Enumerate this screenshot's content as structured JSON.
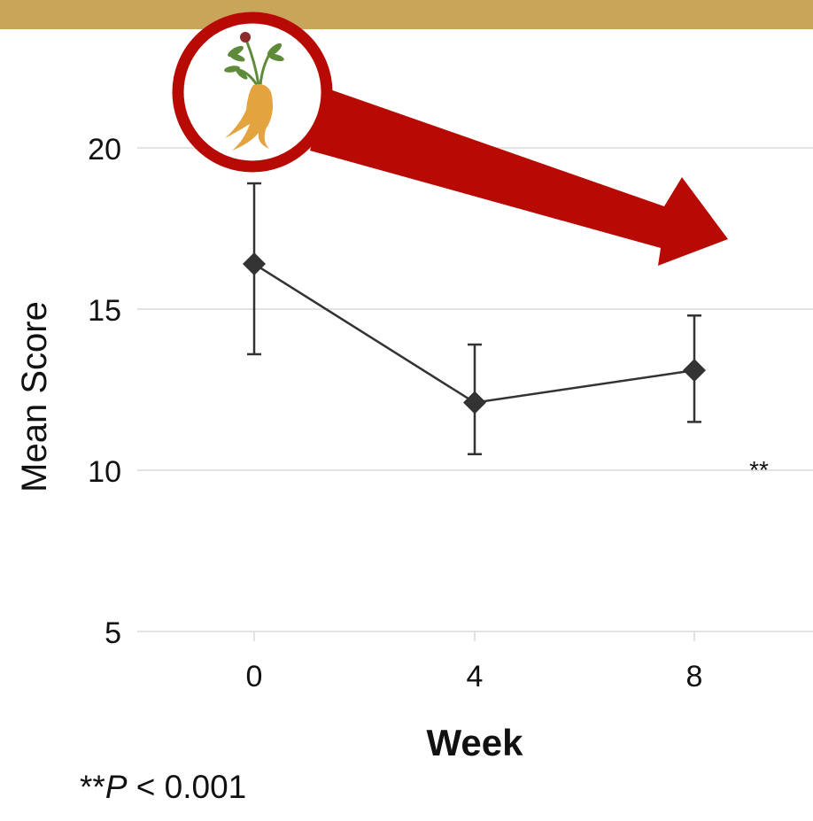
{
  "colors": {
    "top_bar": "#c8a558",
    "line": "#333333",
    "marker": "#333333",
    "grid": "#e3e3e3",
    "arrow": "#b80a05",
    "badge_ring": "#b80a05",
    "root": "#e3a33f",
    "leaf": "#5f8a3a",
    "flower": "#8c2b2b"
  },
  "icons": {
    "badge": "ginseng-root-icon",
    "arrow": "downward-trend-arrow-icon"
  },
  "chart_data": {
    "type": "line",
    "title": "",
    "xlabel": "Week",
    "ylabel": "Mean Score",
    "categories": [
      "0",
      "4",
      "8"
    ],
    "series": [
      {
        "values": [
          16.4,
          12.1,
          13.1
        ],
        "error_low": [
          13.6,
          10.5,
          11.5
        ],
        "error_high": [
          18.9,
          13.9,
          14.8
        ],
        "marker": "diamond"
      }
    ],
    "yticks": [
      "5",
      "10",
      "15",
      "20"
    ],
    "ylim": [
      5,
      22
    ],
    "grid": "horizontal",
    "annotations": [
      {
        "text": "**",
        "near": "week 8, right side"
      }
    ]
  },
  "footnote": {
    "stars": "**",
    "p": "P",
    "rest": " < 0.001"
  }
}
